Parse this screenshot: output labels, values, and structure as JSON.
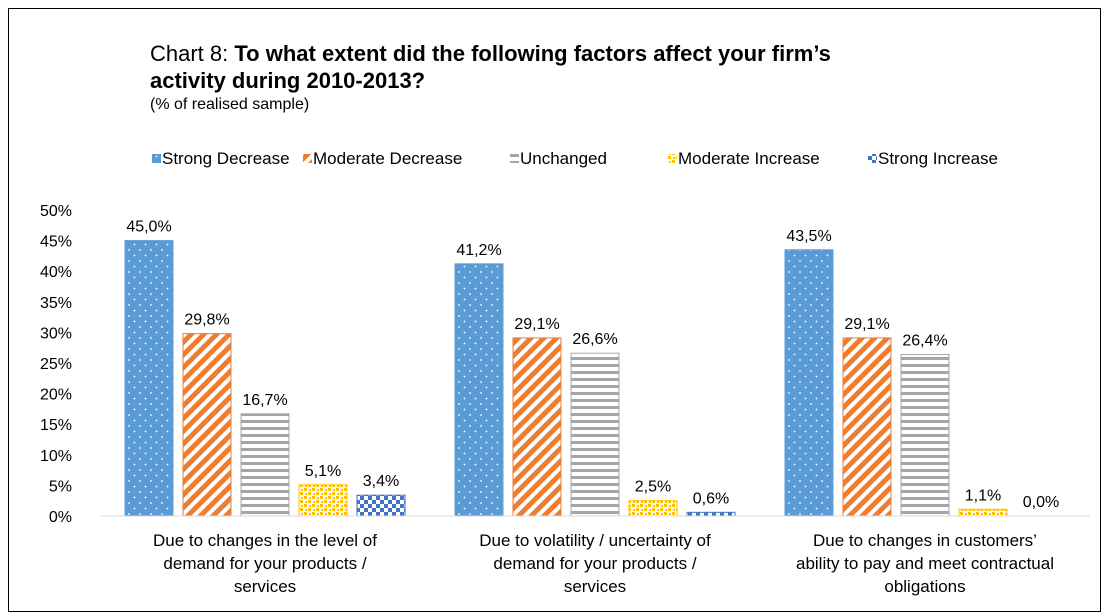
{
  "title": {
    "prefix": "Chart 8: ",
    "line1_bold": "To what extent did the following  factors affect your firm’s",
    "line2_bold": "activity during 2010-2013?",
    "subtitle": "(% of realised sample)"
  },
  "chart_data": {
    "type": "bar",
    "categories": [
      [
        "Due to changes in the level of",
        "demand for your products /",
        "services"
      ],
      [
        "Due to volatility / uncertainty of",
        "demand for your products /",
        "services"
      ],
      [
        "Due to changes in customers’",
        "ability to pay and meet contractual",
        "obligations"
      ]
    ],
    "series": [
      {
        "name": "Strong Decrease",
        "values": [
          45.0,
          41.2,
          43.5
        ],
        "labels": [
          "45,0%",
          "41,2%",
          "43,5%"
        ],
        "color": "#5b9bd5",
        "pattern": "dots"
      },
      {
        "name": "Moderate Decrease",
        "values": [
          29.8,
          29.1,
          29.1
        ],
        "labels": [
          "29,8%",
          "29,1%",
          "29,1%"
        ],
        "color": "#ed7d31",
        "pattern": "diagonal-stripes"
      },
      {
        "name": "Unchanged",
        "values": [
          16.7,
          26.6,
          26.4
        ],
        "labels": [
          "16,7%",
          "26,6%",
          "26,4%"
        ],
        "color": "#a5a5a5",
        "pattern": "horizontal-stripes"
      },
      {
        "name": "Moderate Increase",
        "values": [
          5.1,
          2.5,
          1.1
        ],
        "labels": [
          "5,1%",
          "2,5%",
          "1,1%"
        ],
        "color": "#ffc000",
        "pattern": "confetti"
      },
      {
        "name": "Strong Increase",
        "values": [
          3.4,
          0.6,
          0.0
        ],
        "labels": [
          "3,4%",
          "0,6%",
          "0,0%"
        ],
        "color": "#4472c4",
        "pattern": "checker"
      }
    ],
    "yticks": [
      "0%",
      "5%",
      "10%",
      "15%",
      "20%",
      "25%",
      "30%",
      "35%",
      "40%",
      "45%",
      "50%"
    ],
    "ylim": [
      0,
      50
    ],
    "legend_position": "top",
    "grid": false
  }
}
